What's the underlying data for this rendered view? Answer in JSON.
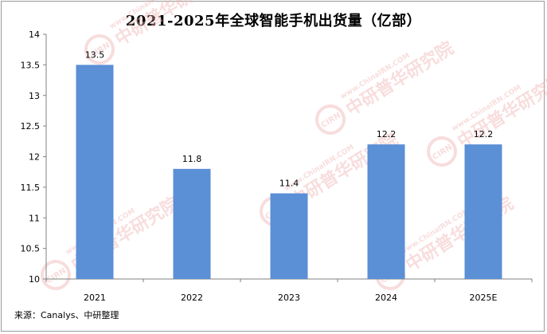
{
  "chart_data": {
    "type": "bar",
    "title": "2021-2025年全球智能手机出货量（亿部）",
    "categories": [
      "2021",
      "2022",
      "2023",
      "2024",
      "2025E"
    ],
    "values": [
      13.5,
      11.8,
      11.4,
      12.2,
      12.2
    ],
    "data_labels": [
      "13.5",
      "11.8",
      "11.4",
      "12.2",
      "12.2"
    ],
    "ylim": [
      10,
      14
    ],
    "yticks": [
      10,
      10.5,
      11,
      11.5,
      12,
      12.5,
      13,
      13.5,
      14
    ],
    "ytick_labels": [
      "10",
      "10.5",
      "11",
      "11.5",
      "12",
      "12.5",
      "13",
      "13.5",
      "14"
    ],
    "grid": false,
    "bar_color": "#5b8fd6",
    "axis_color": "#808080",
    "source": "来源：Canalys、中研整理"
  },
  "watermark": {
    "badge_text": "CIRN",
    "brand_text": "中研普华研究院",
    "site_text": "www.ChinaIRN.COM",
    "color": "#f0b4b4"
  }
}
